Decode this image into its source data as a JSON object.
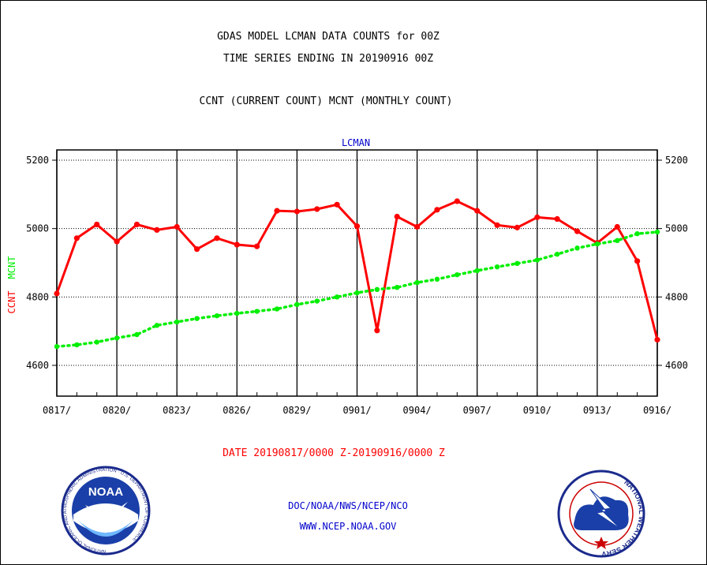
{
  "header": {
    "title_line1": "GDAS MODEL LCMAN DATA COUNTS for 00Z",
    "title_line2": "TIME SERIES ENDING IN 20190916 00Z",
    "subtitle": "CCNT (CURRENT COUNT) MCNT (MONTHLY COUNT)"
  },
  "footer": {
    "date_range": "DATE 20190817/0000 Z-20190916/0000 Z",
    "credit_line1": "DOC/NOAA/NWS/NCEP/NCO",
    "credit_line2": "WWW.NCEP.NOAA.GOV"
  },
  "logos": {
    "noaa_text": "NOAA",
    "noaa_ring_text": "NATIONAL OCEANIC AND ATMOSPHERIC ADMINISTRATION · U.S. DEPARTMENT OF COMMERCE",
    "nws_ring_text": "NATIONAL WEATHER SERVICE"
  },
  "colors": {
    "ccnt": "#ff0000",
    "mcnt": "#00ee00",
    "panel_label": "#0000cc",
    "credit": "#0000cc",
    "date_range": "#ff0000"
  },
  "chart_data": {
    "type": "line",
    "panel_label": "LCMAN",
    "ylabel_ccnt": "CCNT",
    "ylabel_mcnt": "MCNT",
    "ylim": [
      4510,
      5230
    ],
    "yticks": [
      4600,
      4800,
      5000,
      5200
    ],
    "ytick_labels": [
      "4600",
      "4800",
      "5000",
      "5200"
    ],
    "grid": true,
    "xtick_labels": [
      "0817/",
      "0820/",
      "0823/",
      "0826/",
      "0829/",
      "0901/",
      "0904/",
      "0907/",
      "0910/",
      "0913/",
      "0916/"
    ],
    "x": [
      "0817",
      "0818",
      "0819",
      "0820",
      "0821",
      "0822",
      "0823",
      "0824",
      "0825",
      "0826",
      "0827",
      "0828",
      "0829",
      "0830",
      "0831",
      "0901",
      "0902",
      "0903",
      "0904",
      "0905",
      "0906",
      "0907",
      "0908",
      "0909",
      "0910",
      "0911",
      "0912",
      "0913",
      "0914",
      "0915",
      "0916"
    ],
    "series": [
      {
        "name": "CCNT",
        "values": [
          4810,
          4972,
          5012,
          4962,
          5012,
          4996,
          5005,
          4940,
          4972,
          4953,
          4948,
          5052,
          5050,
          5057,
          5070,
          5007,
          4702,
          5035,
          5005,
          5055,
          5080,
          5052,
          5010,
          5003,
          5033,
          5028,
          4992,
          4958,
          5005,
          4905,
          4675
        ]
      },
      {
        "name": "MCNT",
        "values": [
          4655,
          4660,
          4668,
          4680,
          4690,
          4717,
          4727,
          4737,
          4745,
          4752,
          4758,
          4765,
          4778,
          4788,
          4800,
          4812,
          4822,
          4828,
          4842,
          4852,
          4865,
          4877,
          4888,
          4898,
          4908,
          4925,
          4943,
          4955,
          4965,
          4985,
          4990
        ]
      }
    ]
  }
}
